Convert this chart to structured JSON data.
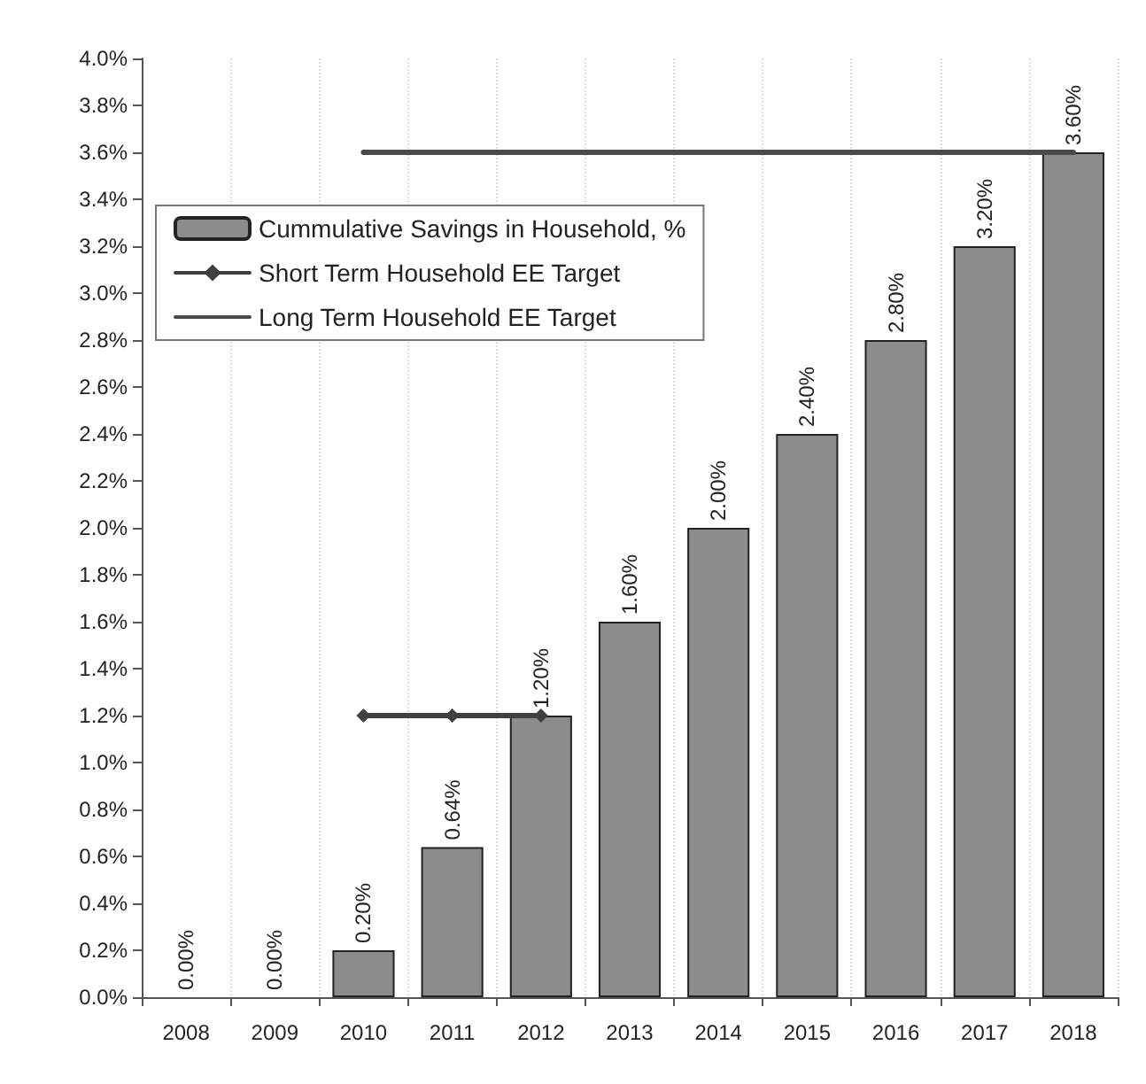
{
  "chart_data": {
    "type": "bar",
    "categories": [
      "2008",
      "2009",
      "2010",
      "2011",
      "2012",
      "2013",
      "2014",
      "2015",
      "2016",
      "2017",
      "2018"
    ],
    "series": [
      {
        "name": "Cummulative Savings in Household, %",
        "color": "#8c8c8c",
        "values": [
          0,
          0,
          0.2,
          0.64,
          1.2,
          1.6,
          2.0,
          2.4,
          2.8,
          3.2,
          3.6
        ],
        "value_labels": [
          "0.00%",
          "0.00%",
          "0.20%",
          "0.64%",
          "1.20%",
          "1.60%",
          "2.00%",
          "2.40%",
          "2.80%",
          "3.20%",
          "3.60%"
        ]
      },
      {
        "name": "Short Term Household EE Target",
        "type": "line",
        "color": "#404040",
        "marker": "diamond",
        "values": [
          null,
          null,
          1.2,
          1.2,
          1.2,
          null,
          null,
          null,
          null,
          null,
          null
        ]
      },
      {
        "name": "Long Term Household EE Target",
        "type": "line",
        "color": "#4a4a4a",
        "marker": "none",
        "values": [
          null,
          null,
          3.6,
          3.6,
          3.6,
          3.6,
          3.6,
          3.6,
          3.6,
          3.6,
          3.6
        ]
      }
    ],
    "ylim": [
      0,
      4.0
    ],
    "yticks": [
      {
        "value": 0,
        "label": "0.0%"
      },
      {
        "value": 0.2,
        "label": "0.2%"
      },
      {
        "value": 0.4,
        "label": "0.4%"
      },
      {
        "value": 0.6,
        "label": "0.6%"
      },
      {
        "value": 0.8,
        "label": "0.8%"
      },
      {
        "value": 1.0,
        "label": "1.0%"
      },
      {
        "value": 1.2,
        "label": "1.2%"
      },
      {
        "value": 1.4,
        "label": "1.4%"
      },
      {
        "value": 1.6,
        "label": "1.6%"
      },
      {
        "value": 1.8,
        "label": "1.8%"
      },
      {
        "value": 2.0,
        "label": "2.0%"
      },
      {
        "value": 2.2,
        "label": "2.2%"
      },
      {
        "value": 2.4,
        "label": "2.4%"
      },
      {
        "value": 2.6,
        "label": "2.6%"
      },
      {
        "value": 2.8,
        "label": "2.8%"
      },
      {
        "value": 3.0,
        "label": "3.0%"
      },
      {
        "value": 3.2,
        "label": "3.2%"
      },
      {
        "value": 3.4,
        "label": "3.4%"
      },
      {
        "value": 3.6,
        "label": "3.6%"
      },
      {
        "value": 3.8,
        "label": "3.8%"
      },
      {
        "value": 4.0,
        "label": "4.0%"
      }
    ],
    "grid": "x",
    "legend": "top left",
    "line_style": "solid"
  }
}
